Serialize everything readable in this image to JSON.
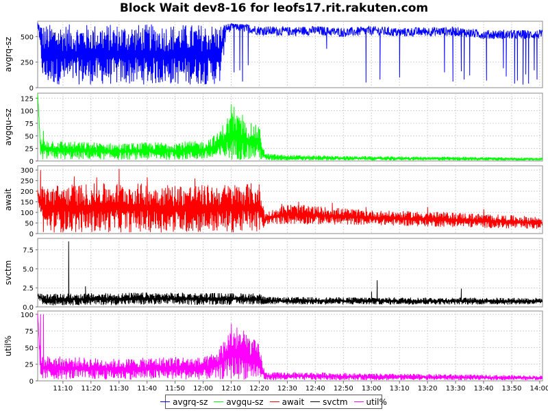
{
  "chart_data": {
    "type": "line",
    "title": "Block Wait dev8-16 for leofs17.rit.rakuten.com",
    "x_ticks": [
      "11:10",
      "11:20",
      "11:30",
      "11:40",
      "11:50",
      "12:00",
      "12:10",
      "12:20",
      "12:30",
      "12:40",
      "12:50",
      "13:00",
      "13:10",
      "13:20",
      "13:30",
      "13:40",
      "13:50",
      "14:00"
    ],
    "x_range": [
      "11:01",
      "14:01"
    ],
    "grid": true,
    "legend_position": "bottom-center",
    "panels": [
      {
        "name": "avgrq-sz",
        "ylabel": "avgrq-sz",
        "color": "#0000ff",
        "ylim": [
          0,
          650
        ],
        "y_ticks": [
          0,
          250,
          500
        ],
        "anchors": [
          [
            "11:01",
            620
          ],
          [
            "11:04",
            40
          ],
          [
            "11:10",
            35
          ],
          [
            "11:20",
            40
          ],
          [
            "11:30",
            40
          ],
          [
            "11:40",
            40
          ],
          [
            "11:50",
            40
          ],
          [
            "12:00",
            40
          ],
          [
            "12:05",
            30
          ],
          [
            "12:08",
            580
          ],
          [
            "12:12",
            600
          ],
          [
            "12:20",
            560
          ],
          [
            "12:30",
            550
          ],
          [
            "12:40",
            560
          ],
          [
            "12:50",
            540
          ],
          [
            "13:00",
            560
          ],
          [
            "13:10",
            540
          ],
          [
            "13:20",
            550
          ],
          [
            "13:30",
            550
          ],
          [
            "13:40",
            520
          ],
          [
            "13:50",
            520
          ],
          [
            "14:00",
            520
          ]
        ],
        "range_min": [
          [
            "11:01",
            600
          ],
          [
            "11:03",
            30
          ],
          [
            "12:06",
            30
          ],
          [
            "12:08",
            450
          ],
          [
            "12:22",
            470
          ],
          [
            "13:00",
            450
          ],
          [
            "14:00",
            440
          ]
        ],
        "range_max": [
          [
            "11:01",
            640
          ],
          [
            "11:03",
            620
          ],
          [
            "12:06",
            620
          ],
          [
            "12:08",
            630
          ],
          [
            "12:22",
            600
          ],
          [
            "13:00",
            600
          ],
          [
            "14:00",
            600
          ]
        ],
        "spikes": [
          [
            "12:11",
            150
          ],
          [
            "12:13",
            170
          ],
          [
            "12:14",
            60
          ],
          [
            "12:16",
            220
          ],
          [
            "12:44",
            380
          ],
          [
            "12:58",
            50
          ],
          [
            "13:03",
            80
          ],
          [
            "13:10",
            100
          ],
          [
            "13:26",
            150
          ],
          [
            "13:29",
            60
          ],
          [
            "13:32",
            160
          ],
          [
            "13:33",
            80
          ],
          [
            "13:35",
            120
          ],
          [
            "13:41",
            70
          ],
          [
            "13:47",
            190
          ],
          [
            "13:48",
            110
          ],
          [
            "13:51",
            40
          ],
          [
            "13:52",
            70
          ],
          [
            "13:54",
            30
          ],
          [
            "13:55",
            130
          ],
          [
            "13:56",
            40
          ],
          [
            "13:58",
            170
          ],
          [
            "13:59",
            80
          ]
        ]
      },
      {
        "name": "avgqu-sz",
        "ylabel": "avgqu-sz",
        "color": "#00ff00",
        "ylim": [
          0,
          135
        ],
        "y_ticks": [
          0,
          25,
          50,
          75,
          100,
          125
        ],
        "range_min": [
          [
            "11:01",
            128
          ],
          [
            "11:02",
            3
          ],
          [
            "12:21",
            2
          ],
          [
            "12:22",
            1
          ],
          [
            "14:00",
            1
          ]
        ],
        "range_max": [
          [
            "11:01",
            133
          ],
          [
            "11:02",
            45
          ],
          [
            "11:10",
            40
          ],
          [
            "11:30",
            35
          ],
          [
            "11:45",
            38
          ],
          [
            "12:00",
            40
          ],
          [
            "12:05",
            55
          ],
          [
            "12:10",
            100
          ],
          [
            "12:15",
            80
          ],
          [
            "12:20",
            70
          ],
          [
            "12:22",
            15
          ],
          [
            "12:30",
            12
          ],
          [
            "12:50",
            10
          ],
          [
            "13:10",
            9
          ],
          [
            "13:40",
            8
          ],
          [
            "14:00",
            6
          ]
        ],
        "spikes": [
          [
            "11:03",
            60
          ],
          [
            "12:10",
            113
          ],
          [
            "12:11",
            108
          ],
          [
            "12:12",
            90
          ],
          [
            "12:14",
            92
          ]
        ]
      },
      {
        "name": "await",
        "ylabel": "await",
        "color": "#ff0000",
        "ylim": [
          0,
          320
        ],
        "y_ticks": [
          0,
          50,
          100,
          150,
          200,
          250,
          300
        ],
        "range_min": [
          [
            "11:01",
            170
          ],
          [
            "11:03",
            5
          ],
          [
            "12:21",
            5
          ],
          [
            "12:23",
            45
          ],
          [
            "13:00",
            40
          ],
          [
            "13:30",
            30
          ],
          [
            "14:00",
            20
          ]
        ],
        "range_max": [
          [
            "11:01",
            210
          ],
          [
            "11:03",
            230
          ],
          [
            "11:30",
            240
          ],
          [
            "12:00",
            230
          ],
          [
            "12:20",
            240
          ],
          [
            "12:22",
            100
          ],
          [
            "12:30",
            140
          ],
          [
            "13:00",
            110
          ],
          [
            "13:30",
            100
          ],
          [
            "14:00",
            80
          ]
        ],
        "spikes": [
          [
            "11:02",
            300
          ],
          [
            "11:30",
            305
          ],
          [
            "11:14",
            270
          ],
          [
            "11:22",
            265
          ],
          [
            "11:40",
            265
          ],
          [
            "11:57",
            260
          ],
          [
            "12:28",
            140
          ],
          [
            "12:34",
            150
          ],
          [
            "12:46",
            145
          ],
          [
            "12:58",
            125
          ],
          [
            "13:20",
            125
          ],
          [
            "13:40",
            115
          ]
        ]
      },
      {
        "name": "svctm",
        "ylabel": "svctm",
        "color": "#000000",
        "ylim": [
          0,
          9
        ],
        "y_ticks": [
          0.0,
          2.5,
          5.0,
          7.5
        ],
        "range_min": [
          [
            "11:01",
            1.2
          ],
          [
            "11:03",
            0.2
          ],
          [
            "12:20",
            0.3
          ],
          [
            "14:00",
            0.3
          ]
        ],
        "range_max": [
          [
            "11:01",
            1.8
          ],
          [
            "11:03",
            1.7
          ],
          [
            "11:40",
            1.9
          ],
          [
            "12:20",
            1.8
          ],
          [
            "12:22",
            1.3
          ],
          [
            "14:00",
            1.2
          ]
        ],
        "spikes": [
          [
            "11:12",
            8.6
          ],
          [
            "11:18",
            2.7
          ],
          [
            "13:02",
            3.5
          ],
          [
            "13:32",
            2.4
          ],
          [
            "13:00",
            2.0
          ]
        ]
      },
      {
        "name": "util%",
        "ylabel": "util%",
        "color": "#ff00ff",
        "ylim": [
          0,
          105
        ],
        "y_ticks": [
          0,
          25,
          50,
          75,
          100
        ],
        "range_min": [
          [
            "11:01",
            99
          ],
          [
            "11:02",
            2
          ],
          [
            "12:20",
            2
          ],
          [
            "12:22",
            1
          ],
          [
            "14:00",
            1
          ]
        ],
        "range_max": [
          [
            "11:01",
            101
          ],
          [
            "11:02",
            38
          ],
          [
            "11:30",
            33
          ],
          [
            "11:50",
            37
          ],
          [
            "12:00",
            35
          ],
          [
            "12:05",
            45
          ],
          [
            "12:10",
            82
          ],
          [
            "12:15",
            75
          ],
          [
            "12:20",
            55
          ],
          [
            "12:22",
            13
          ],
          [
            "12:40",
            13
          ],
          [
            "13:00",
            11
          ],
          [
            "13:30",
            10
          ],
          [
            "14:00",
            8
          ]
        ],
        "spikes": [
          [
            "11:02",
            100
          ],
          [
            "11:03",
            100
          ],
          [
            "12:10",
            86
          ],
          [
            "12:12",
            80
          ]
        ]
      }
    ]
  },
  "legend": [
    {
      "label": "avgrq-sz",
      "color": "#0000ff"
    },
    {
      "label": "avgqu-sz",
      "color": "#00ff00"
    },
    {
      "label": "await",
      "color": "#ff0000"
    },
    {
      "label": "svctm",
      "color": "#000000"
    },
    {
      "label": "util%",
      "color": "#ff00ff"
    }
  ]
}
